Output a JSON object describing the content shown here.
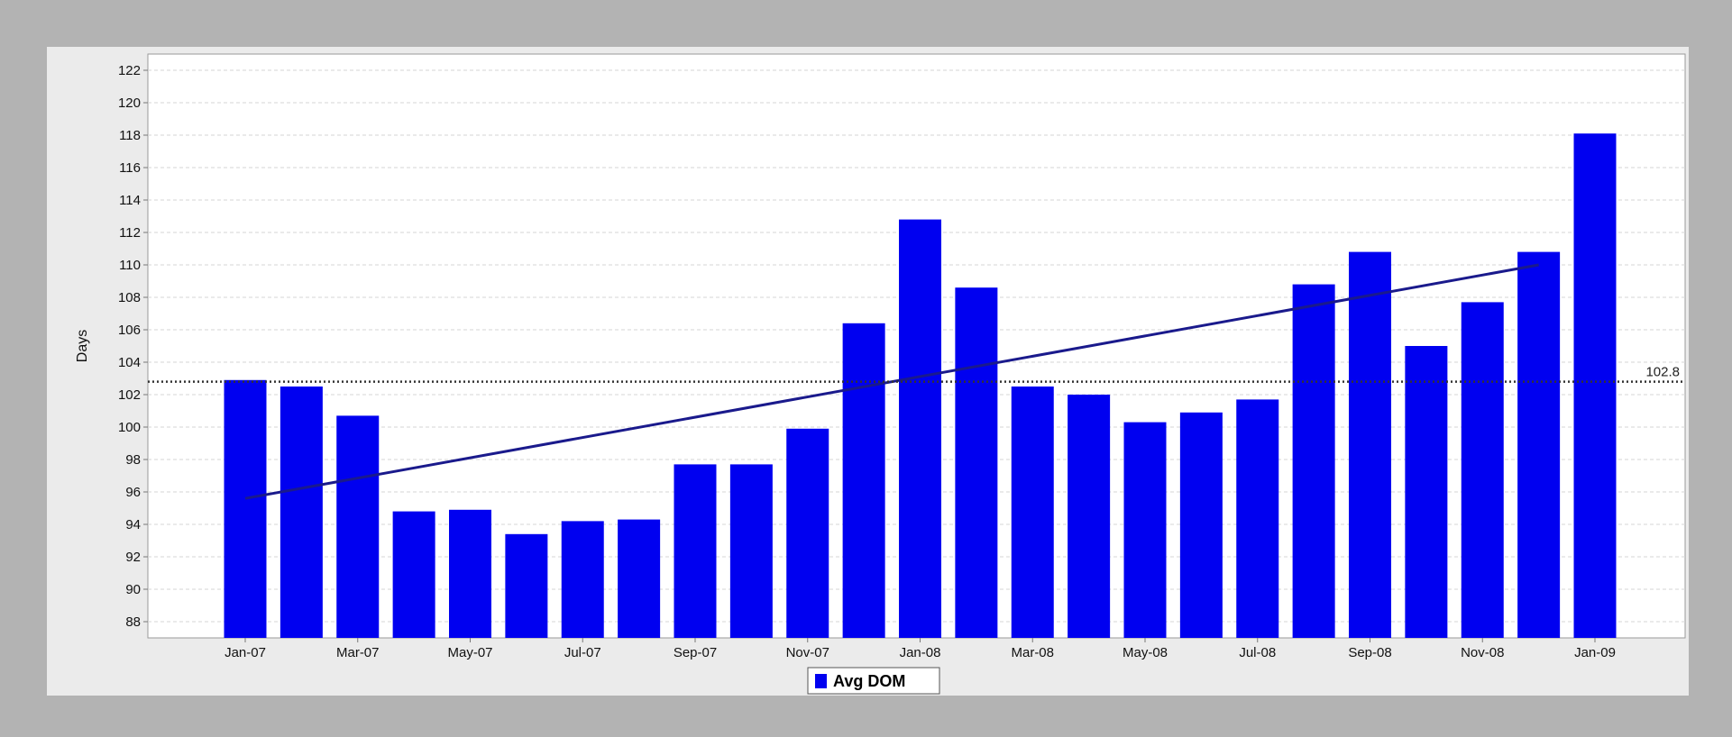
{
  "chart_data": {
    "type": "bar",
    "ylabel": "Days",
    "ylim": [
      87,
      123
    ],
    "yticks": [
      88,
      90,
      92,
      94,
      96,
      98,
      100,
      102,
      104,
      106,
      108,
      110,
      112,
      114,
      116,
      118,
      120,
      122
    ],
    "categories": [
      "Jan-07",
      "Feb-07",
      "Mar-07",
      "Apr-07",
      "May-07",
      "Jun-07",
      "Jul-07",
      "Aug-07",
      "Sep-07",
      "Oct-07",
      "Nov-07",
      "Dec-07",
      "Jan-08",
      "Feb-08",
      "Mar-08",
      "Apr-08",
      "May-08",
      "Jun-08",
      "Jul-08",
      "Aug-08",
      "Sep-08",
      "Oct-08",
      "Nov-08",
      "Dec-08",
      "Jan-09"
    ],
    "x_tick_labels": [
      "Jan-07",
      "Mar-07",
      "May-07",
      "Jul-07",
      "Sep-07",
      "Nov-07",
      "Jan-08",
      "Mar-08",
      "May-08",
      "Jul-08",
      "Sep-08",
      "Nov-08",
      "Jan-09"
    ],
    "series": [
      {
        "name": "Avg DOM",
        "color": "#0000f0",
        "values": [
          102.9,
          102.5,
          100.7,
          94.8,
          94.9,
          93.4,
          94.2,
          94.3,
          97.7,
          97.7,
          99.9,
          106.4,
          112.8,
          108.6,
          102.5,
          102.0,
          100.3,
          100.9,
          101.7,
          108.8,
          110.8,
          105.0,
          107.7,
          110.8,
          118.1
        ]
      }
    ],
    "average": {
      "value": 102.8,
      "label": "102.8",
      "style": "dotted",
      "color": "#333333"
    },
    "trend": {
      "start": 95.6,
      "end": 110.0,
      "color": "#1a1a8c"
    },
    "legend": {
      "label": "Avg DOM",
      "placement": "bottom-center"
    },
    "grid": true
  }
}
